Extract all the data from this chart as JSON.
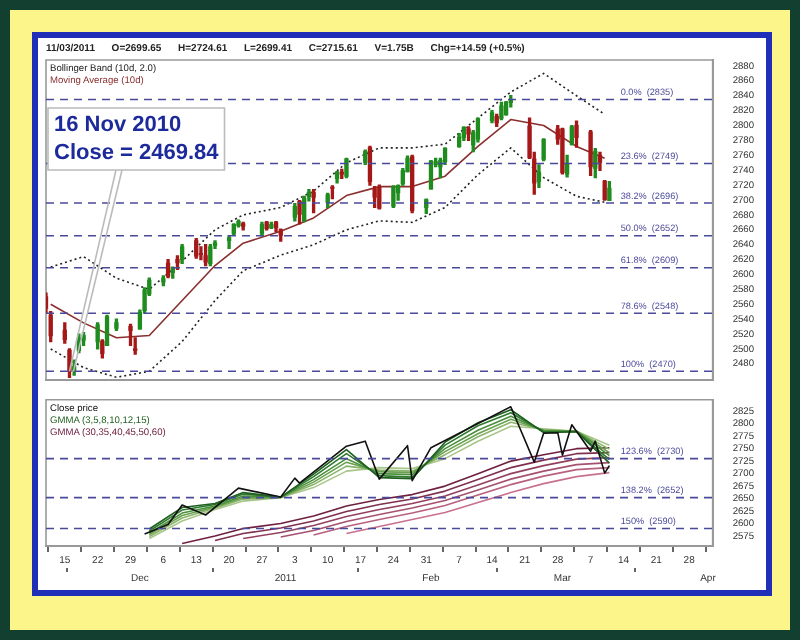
{
  "chart_data": [
    {
      "type": "candlestick",
      "title": "11/03/2011      O=2699.65      H=2724.61      L=2699.41      C=2715.61      V=1.75B      Chg=+14.59 (+0.5%)",
      "legend": "top left",
      "tick_labels": "y",
      "xlim": [
        "2010-11-11",
        "2011-04-02"
      ],
      "ylim": [
        2458,
        2888
      ],
      "yticks": [
        2480,
        2500,
        2520,
        2540,
        2560,
        2580,
        2600,
        2620,
        2640,
        2660,
        2680,
        2700,
        2720,
        2740,
        2760,
        2780,
        2800,
        2820,
        2840,
        2860,
        2880
      ],
      "x": [
        "2010-11-11",
        "2010-11-12",
        "2010-11-15",
        "2010-11-16",
        "2010-11-17",
        "2010-11-18",
        "2010-11-19",
        "2010-11-22",
        "2010-11-23",
        "2010-11-24",
        "2010-11-26",
        "2010-11-29",
        "2010-11-30",
        "2010-12-01",
        "2010-12-02",
        "2010-12-03",
        "2010-12-06",
        "2010-12-07",
        "2010-12-08",
        "2010-12-09",
        "2010-12-10",
        "2010-12-13",
        "2010-12-14",
        "2010-12-15",
        "2010-12-16",
        "2010-12-17",
        "2010-12-20",
        "2010-12-21",
        "2010-12-22",
        "2010-12-23",
        "2010-12-27",
        "2010-12-28",
        "2010-12-29",
        "2010-12-30",
        "2010-12-31",
        "2011-01-03",
        "2011-01-04",
        "2011-01-05",
        "2011-01-06",
        "2011-01-07",
        "2011-01-10",
        "2011-01-11",
        "2011-01-12",
        "2011-01-13",
        "2011-01-14",
        "2011-01-18",
        "2011-01-19",
        "2011-01-20",
        "2011-01-21",
        "2011-01-24",
        "2011-01-25",
        "2011-01-26",
        "2011-01-27",
        "2011-01-28",
        "2011-01-31",
        "2011-02-01",
        "2011-02-02",
        "2011-02-03",
        "2011-02-04",
        "2011-02-07",
        "2011-02-08",
        "2011-02-09",
        "2011-02-10",
        "2011-02-11",
        "2011-02-14",
        "2011-02-15",
        "2011-02-16",
        "2011-02-17",
        "2011-02-18",
        "2011-02-22",
        "2011-02-23",
        "2011-02-24",
        "2011-02-25",
        "2011-02-28",
        "2011-03-01",
        "2011-03-02",
        "2011-03-03",
        "2011-03-04",
        "2011-03-07",
        "2011-03-08",
        "2011-03-09",
        "2011-03-10",
        "2011-03-11"
      ],
      "ohlc": [
        [
          2570,
          2575,
          2548,
          2555
        ],
        [
          2545,
          2550,
          2510,
          2518
        ],
        [
          2525,
          2535,
          2508,
          2513
        ],
        [
          2498,
          2500,
          2462,
          2469.84
        ],
        [
          2472,
          2485,
          2465,
          2476
        ],
        [
          2498,
          2520,
          2495,
          2514
        ],
        [
          2512,
          2522,
          2505,
          2518
        ],
        [
          2510,
          2535,
          2500,
          2532
        ],
        [
          2510,
          2512,
          2488,
          2494
        ],
        [
          2505,
          2545,
          2505,
          2543
        ],
        [
          2528,
          2540,
          2525,
          2535
        ],
        [
          2530,
          2533,
          2505,
          2525
        ],
        [
          2500,
          2515,
          2493,
          2498
        ],
        [
          2527,
          2552,
          2527,
          2549
        ],
        [
          2552,
          2582,
          2548,
          2579
        ],
        [
          2574,
          2595,
          2572,
          2592
        ],
        [
          2590,
          2598,
          2585,
          2594
        ],
        [
          2615,
          2620,
          2596,
          2598
        ],
        [
          2603,
          2610,
          2595,
          2609
        ],
        [
          2620,
          2625,
          2607,
          2616
        ],
        [
          2620,
          2640,
          2615,
          2637
        ],
        [
          2645,
          2648,
          2622,
          2625
        ],
        [
          2628,
          2637,
          2620,
          2627
        ],
        [
          2625,
          2640,
          2612,
          2617
        ],
        [
          2615,
          2640,
          2612,
          2637
        ],
        [
          2639,
          2645,
          2635,
          2642
        ],
        [
          2646,
          2652,
          2635,
          2649
        ],
        [
          2655,
          2668,
          2654,
          2667
        ],
        [
          2666,
          2673,
          2664,
          2671
        ],
        [
          2668,
          2670,
          2660,
          2665
        ],
        [
          2655,
          2670,
          2652,
          2667
        ],
        [
          2670,
          2671,
          2660,
          2662
        ],
        [
          2663,
          2670,
          2662,
          2667
        ],
        [
          2670,
          2671,
          2658,
          2663
        ],
        [
          2660,
          2661,
          2645,
          2653
        ],
        [
          2677,
          2695,
          2672,
          2691
        ],
        [
          2698,
          2699,
          2668,
          2681
        ],
        [
          2672,
          2705,
          2671,
          2702
        ],
        [
          2705,
          2714,
          2699,
          2710
        ],
        [
          2710,
          2714,
          2683,
          2704
        ],
        [
          2697,
          2709,
          2690,
          2707
        ],
        [
          2717,
          2719,
          2702,
          2716
        ],
        [
          2729,
          2738,
          2723,
          2737
        ],
        [
          2737,
          2741,
          2729,
          2735
        ],
        [
          2732,
          2756,
          2730,
          2755
        ],
        [
          2751,
          2767,
          2748,
          2765
        ],
        [
          2770,
          2772,
          2720,
          2725
        ],
        [
          2715,
          2718,
          2690,
          2704
        ],
        [
          2717,
          2720,
          2688,
          2689
        ],
        [
          2692,
          2719,
          2690,
          2718
        ],
        [
          2710,
          2720,
          2700,
          2719
        ],
        [
          2722,
          2742,
          2720,
          2739
        ],
        [
          2738,
          2759,
          2738,
          2756
        ],
        [
          2758,
          2760,
          2683,
          2686
        ],
        [
          2690,
          2701,
          2682,
          2700
        ],
        [
          2715,
          2753,
          2715,
          2752
        ],
        [
          2748,
          2756,
          2745,
          2751
        ],
        [
          2745,
          2756,
          2730,
          2753
        ],
        [
          2752,
          2770,
          2748,
          2769
        ],
        [
          2772,
          2789,
          2771,
          2784
        ],
        [
          2784,
          2798,
          2780,
          2797
        ],
        [
          2795,
          2798,
          2780,
          2789
        ],
        [
          2774,
          2793,
          2765,
          2790
        ],
        [
          2782,
          2810,
          2778,
          2809
        ],
        [
          2807,
          2820,
          2804,
          2817
        ],
        [
          2812,
          2815,
          2799,
          2804
        ],
        [
          2810,
          2831,
          2808,
          2826
        ],
        [
          2815,
          2832,
          2814,
          2831
        ],
        [
          2831,
          2840,
          2825,
          2834
        ],
        [
          2799,
          2810,
          2756,
          2757
        ],
        [
          2755,
          2764,
          2708,
          2723
        ],
        [
          2725,
          2747,
          2717,
          2737
        ],
        [
          2755,
          2782,
          2753,
          2781
        ],
        [
          2795,
          2800,
          2775,
          2782
        ],
        [
          2795,
          2796,
          2735,
          2737
        ],
        [
          2735,
          2760,
          2731,
          2748
        ],
        [
          2775,
          2800,
          2774,
          2798
        ],
        [
          2800,
          2806,
          2771,
          2784
        ],
        [
          2791,
          2793,
          2733,
          2745
        ],
        [
          2743,
          2769,
          2730,
          2765
        ],
        [
          2760,
          2764,
          2740,
          2751
        ],
        [
          2725,
          2726,
          2700,
          2701
        ],
        [
          2699.65,
          2724.61,
          2699.41,
          2715.61
        ]
      ],
      "series": [
        {
          "type": "line",
          "name": "Bollinger Band (10d, 2.0)",
          "color": "#222222",
          "line_style": "dotted",
          "x": [
            "2010-11-12",
            "2010-11-19",
            "2010-11-26",
            "2010-12-03",
            "2010-12-10",
            "2010-12-17",
            "2010-12-23",
            "2010-12-31",
            "2011-01-07",
            "2011-01-14",
            "2011-01-21",
            "2011-01-28",
            "2011-02-04",
            "2011-02-11",
            "2011-02-18",
            "2011-02-25",
            "2011-03-04",
            "2011-03-10"
          ],
          "values": [
            2610,
            2624,
            2595,
            2580,
            2618,
            2660,
            2680,
            2690,
            2712,
            2750,
            2770,
            2770,
            2775,
            2810,
            2845,
            2870,
            2840,
            2815
          ]
        },
        {
          "type": "line",
          "color": "#222222",
          "line_style": "dotted",
          "x": [
            "2010-11-12",
            "2010-11-19",
            "2010-11-26",
            "2010-12-03",
            "2010-12-10",
            "2010-12-17",
            "2010-12-23",
            "2010-12-31",
            "2011-01-07",
            "2011-01-14",
            "2011-01-21",
            "2011-01-28",
            "2011-02-04",
            "2011-02-11",
            "2011-02-18",
            "2011-02-25",
            "2011-03-04",
            "2011-03-10"
          ],
          "values": [
            2500,
            2475,
            2462,
            2470,
            2510,
            2565,
            2605,
            2626,
            2640,
            2660,
            2672,
            2670,
            2690,
            2734,
            2770,
            2730,
            2705,
            2697
          ]
        },
        {
          "type": "line",
          "name": "Moving Average (10d)",
          "color": "#8b2e2e",
          "line_style": "solid",
          "x": [
            "2010-11-12",
            "2010-11-19",
            "2010-11-26",
            "2010-12-03",
            "2010-12-10",
            "2010-12-17",
            "2010-12-23",
            "2010-12-31",
            "2011-01-07",
            "2011-01-14",
            "2011-01-21",
            "2011-01-28",
            "2011-02-04",
            "2011-02-11",
            "2011-02-18",
            "2011-02-25",
            "2011-03-04",
            "2011-03-10"
          ],
          "values": [
            2560,
            2535,
            2515,
            2518,
            2565,
            2612,
            2642,
            2658,
            2676,
            2706,
            2718,
            2718,
            2732,
            2772,
            2808,
            2800,
            2772,
            2756
          ]
        }
      ],
      "ref_lines": [
        {
          "axis": "y",
          "value": 2835,
          "label": "0.0%  (2835)",
          "color": "#4a4a9a",
          "line_style": "dashed"
        },
        {
          "axis": "y",
          "value": 2749,
          "label": "23.6%  (2749)",
          "color": "#4a4a9a",
          "line_style": "dashed"
        },
        {
          "axis": "y",
          "value": 2696,
          "label": "38.2%  (2696)",
          "color": "#4a4a9a",
          "line_style": "dashed"
        },
        {
          "axis": "y",
          "value": 2652,
          "label": "50.0%  (2652)",
          "color": "#4a4a9a",
          "line_style": "dashed"
        },
        {
          "axis": "y",
          "value": 2609,
          "label": "61.8%  (2609)",
          "color": "#4a4a9a",
          "line_style": "dashed"
        },
        {
          "axis": "y",
          "value": 2548,
          "label": "78.6%  (2548)",
          "color": "#4a4a9a",
          "line_style": "dashed"
        },
        {
          "axis": "y",
          "value": 2470,
          "label": "100%  (2470)",
          "color": "#4a4a9a",
          "line_style": "dashed"
        }
      ],
      "annotations": [
        {
          "text": "16 Nov 2010\nClose = 2469.84",
          "x": "2010-11-16",
          "y": 2469.84
        }
      ]
    },
    {
      "type": "line",
      "legend": "top left",
      "xlim": [
        "2010-11-11",
        "2011-04-02"
      ],
      "ylim": [
        2555,
        2848
      ],
      "yticks": [
        2575,
        2600,
        2625,
        2650,
        2675,
        2700,
        2725,
        2750,
        2775,
        2800,
        2825
      ],
      "xticks": [
        {
          "value": "2010-11-15",
          "label": "15"
        },
        {
          "value": "2010-11-22",
          "label": "22"
        },
        {
          "value": "2010-11-29",
          "label": "29"
        },
        {
          "value": "2010-12-06",
          "label": "6"
        },
        {
          "value": "2010-12-13",
          "label": "13"
        },
        {
          "value": "2010-12-20",
          "label": "20"
        },
        {
          "value": "2010-12-27",
          "label": "27"
        },
        {
          "value": "2011-01-03",
          "label": "3"
        },
        {
          "value": "2011-01-10",
          "label": "10"
        },
        {
          "value": "2011-01-17",
          "label": "17"
        },
        {
          "value": "2011-01-24",
          "label": "24"
        },
        {
          "value": "2011-01-31",
          "label": "31"
        },
        {
          "value": "2011-02-07",
          "label": "7"
        },
        {
          "value": "2011-02-14",
          "label": "14"
        },
        {
          "value": "2011-02-21",
          "label": "21"
        },
        {
          "value": "2011-02-28",
          "label": "28"
        },
        {
          "value": "2011-03-07",
          "label": "7"
        },
        {
          "value": "2011-03-14",
          "label": "14"
        },
        {
          "value": "2011-03-21",
          "label": "21"
        },
        {
          "value": "2011-03-28",
          "label": "28"
        }
      ],
      "x2lim": [
        "2010-11-11",
        "2011-04-02"
      ],
      "x2ticks": [
        {
          "value": "2010-12-01",
          "label": "Dec"
        },
        {
          "value": "2011-01-01",
          "label": "2011"
        },
        {
          "value": "2011-02-01",
          "label": "Feb"
        },
        {
          "value": "2011-03-01",
          "label": "Mar"
        },
        {
          "value": "2011-04-01",
          "label": "Apr"
        }
      ],
      "series": [
        {
          "name": "Close price",
          "color": "#111111",
          "x": [
            "2010-12-02",
            "2010-12-07",
            "2010-12-10",
            "2010-12-13",
            "2010-12-15",
            "2010-12-22",
            "2010-12-31",
            "2011-01-03",
            "2011-01-04",
            "2011-01-14",
            "2011-01-18",
            "2011-01-21",
            "2011-01-27",
            "2011-01-28",
            "2011-02-01",
            "2011-02-18",
            "2011-02-23",
            "2011-02-25",
            "2011-02-28",
            "2011-03-01",
            "2011-03-03",
            "2011-03-07",
            "2011-03-08",
            "2011-03-10",
            "2011-03-11"
          ],
          "values": [
            2579,
            2598,
            2637,
            2625,
            2617,
            2671,
            2653,
            2691,
            2681,
            2755,
            2765,
            2689,
            2756,
            2686,
            2752,
            2834,
            2723,
            2781,
            2782,
            2737,
            2798,
            2745,
            2765,
            2701,
            2716
          ]
        },
        {
          "name": "GMMA (3,5,8,10,12,15)",
          "color": "#1f5f1f",
          "x": [
            "2010-12-03",
            "2010-12-10",
            "2010-12-17",
            "2010-12-23",
            "2010-12-31",
            "2011-01-07",
            "2011-01-14",
            "2011-01-21",
            "2011-01-28",
            "2011-02-04",
            "2011-02-11",
            "2011-02-18",
            "2011-02-25",
            "2011-03-04",
            "2011-03-11"
          ],
          "values": [
            2589,
            2632,
            2640,
            2662,
            2653,
            2699,
            2748,
            2692,
            2690,
            2763,
            2802,
            2828,
            2782,
            2784,
            2721
          ]
        },
        {
          "color": "#2e7a2e",
          "x": [
            "2010-12-03",
            "2010-12-10",
            "2010-12-17",
            "2010-12-23",
            "2010-12-31",
            "2011-01-07",
            "2011-01-14",
            "2011-01-21",
            "2011-01-28",
            "2011-02-04",
            "2011-02-11",
            "2011-02-18",
            "2011-02-25",
            "2011-03-04",
            "2011-03-11"
          ],
          "values": [
            2585,
            2627,
            2638,
            2659,
            2653,
            2694,
            2740,
            2696,
            2693,
            2757,
            2796,
            2822,
            2784,
            2784,
            2728
          ]
        },
        {
          "color": "#4a8f3a",
          "x": [
            "2010-12-03",
            "2010-12-10",
            "2010-12-17",
            "2010-12-23",
            "2010-12-31",
            "2011-01-07",
            "2011-01-14",
            "2011-01-21",
            "2011-01-28",
            "2011-02-04",
            "2011-02-11",
            "2011-02-18",
            "2011-02-25",
            "2011-03-04",
            "2011-03-11"
          ],
          "values": [
            2581,
            2621,
            2635,
            2655,
            2653,
            2688,
            2730,
            2700,
            2698,
            2750,
            2787,
            2815,
            2786,
            2785,
            2736
          ]
        },
        {
          "color": "#6aa050",
          "x": [
            "2010-12-03",
            "2010-12-10",
            "2010-12-17",
            "2010-12-23",
            "2010-12-31",
            "2011-01-07",
            "2011-01-14",
            "2011-01-21",
            "2011-01-28",
            "2011-02-04",
            "2011-02-11",
            "2011-02-18",
            "2011-02-25",
            "2011-03-04",
            "2011-03-11"
          ],
          "values": [
            2578,
            2616,
            2633,
            2652,
            2652,
            2683,
            2723,
            2704,
            2702,
            2744,
            2780,
            2809,
            2787,
            2785,
            2742
          ]
        },
        {
          "color": "#8ab46a",
          "x": [
            "2010-12-03",
            "2010-12-10",
            "2010-12-17",
            "2010-12-23",
            "2010-12-31",
            "2011-01-07",
            "2011-01-14",
            "2011-01-21",
            "2011-01-28",
            "2011-02-04",
            "2011-02-11",
            "2011-02-18",
            "2011-02-25",
            "2011-03-04",
            "2011-03-11"
          ],
          "values": [
            2574,
            2611,
            2631,
            2649,
            2652,
            2678,
            2715,
            2707,
            2705,
            2738,
            2774,
            2803,
            2788,
            2785,
            2749
          ]
        },
        {
          "color": "#a8c68a",
          "x": [
            "2010-12-03",
            "2010-12-10",
            "2010-12-17",
            "2010-12-23",
            "2010-12-31",
            "2011-01-07",
            "2011-01-14",
            "2011-01-21",
            "2011-01-28",
            "2011-02-04",
            "2011-02-11",
            "2011-02-18",
            "2011-02-25",
            "2011-03-04",
            "2011-03-11"
          ],
          "values": [
            2570,
            2605,
            2628,
            2645,
            2652,
            2672,
            2705,
            2712,
            2710,
            2730,
            2765,
            2795,
            2790,
            2785,
            2757
          ]
        },
        {
          "name": "GMMA (30,35,40,45,50,60)",
          "color": "#6e2040",
          "x": [
            "2010-12-10",
            "2010-12-17",
            "2010-12-23",
            "2010-12-31",
            "2011-01-07",
            "2011-01-14",
            "2011-01-21",
            "2011-01-28",
            "2011-02-04",
            "2011-02-11",
            "2011-02-18",
            "2011-02-25",
            "2011-03-04",
            "2011-03-11"
          ],
          "values": [
            2560,
            2575,
            2590,
            2600,
            2615,
            2635,
            2648,
            2658,
            2675,
            2700,
            2725,
            2738,
            2750,
            2752
          ]
        },
        {
          "color": "#80304f",
          "x": [
            "2010-12-17",
            "2010-12-23",
            "2010-12-31",
            "2011-01-07",
            "2011-01-14",
            "2011-01-21",
            "2011-01-28",
            "2011-02-04",
            "2011-02-11",
            "2011-02-18",
            "2011-02-25",
            "2011-03-04",
            "2011-03-11"
          ],
          "values": [
            2566,
            2580,
            2591,
            2605,
            2624,
            2638,
            2649,
            2665,
            2688,
            2712,
            2727,
            2740,
            2742
          ]
        },
        {
          "color": "#93405f",
          "x": [
            "2010-12-23",
            "2010-12-31",
            "2011-01-07",
            "2011-01-14",
            "2011-01-21",
            "2011-01-28",
            "2011-02-04",
            "2011-02-11",
            "2011-02-18",
            "2011-02-25",
            "2011-03-04",
            "2011-03-11"
          ],
          "values": [
            2570,
            2582,
            2596,
            2614,
            2628,
            2640,
            2655,
            2677,
            2700,
            2716,
            2729,
            2732
          ]
        },
        {
          "color": "#a6506f",
          "x": [
            "2010-12-31",
            "2011-01-07",
            "2011-01-14",
            "2011-01-21",
            "2011-01-28",
            "2011-02-04",
            "2011-02-11",
            "2011-02-18",
            "2011-02-25",
            "2011-03-04",
            "2011-03-11"
          ],
          "values": [
            2573,
            2586,
            2604,
            2618,
            2631,
            2646,
            2667,
            2689,
            2705,
            2718,
            2722
          ]
        },
        {
          "color": "#b8607f",
          "x": [
            "2011-01-07",
            "2011-01-14",
            "2011-01-21",
            "2011-01-28",
            "2011-02-04",
            "2011-02-11",
            "2011-02-18",
            "2011-02-25",
            "2011-03-04",
            "2011-03-11"
          ],
          "values": [
            2577,
            2594,
            2608,
            2621,
            2636,
            2657,
            2678,
            2695,
            2708,
            2712
          ]
        },
        {
          "color": "#c87090",
          "x": [
            "2011-01-14",
            "2011-01-21",
            "2011-01-28",
            "2011-02-04",
            "2011-02-11",
            "2011-02-18",
            "2011-02-25",
            "2011-03-04",
            "2011-03-11"
          ],
          "values": [
            2580,
            2594,
            2608,
            2622,
            2642,
            2662,
            2680,
            2694,
            2702
          ]
        }
      ],
      "ref_lines": [
        {
          "axis": "y",
          "value": 2730,
          "label": "123.6%  (2730)",
          "color": "#4a4a9a",
          "line_style": "dashed"
        },
        {
          "axis": "y",
          "value": 2652,
          "label": "138.2%  (2652)",
          "color": "#4a4a9a",
          "line_style": "dashed"
        },
        {
          "axis": "y",
          "value": 2590,
          "label": "150%  (2590)",
          "color": "#4a4a9a",
          "line_style": "dashed"
        }
      ]
    }
  ]
}
